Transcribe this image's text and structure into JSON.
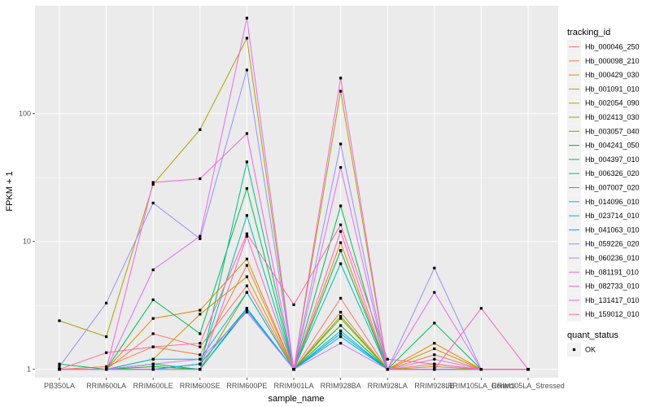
{
  "chart_data": {
    "type": "line",
    "xlabel": "sample_name",
    "ylabel": "FPKM + 1",
    "y_scale": "log10",
    "ylim": [
      0.86,
      700
    ],
    "y_ticks": [
      1,
      10,
      100
    ],
    "y_tick_labels": [
      "1",
      "10",
      "100"
    ],
    "categories": [
      "PB350LA",
      "RRIM600LA",
      "RRIM600LE",
      "RRIM600SE",
      "RRIM600PE",
      "RRIM901LA",
      "RRIM928BA",
      "RRIM928LA",
      "RRIM928LE",
      "RRIM105LA_Control",
      "RRIM105LA_Stressed"
    ],
    "grid": true,
    "background": "#ebebeb",
    "legend_position": "right",
    "legend_title": "tracking_id",
    "shape_legend": {
      "title": "quant_status",
      "labels": [
        "OK"
      ]
    },
    "series": [
      {
        "name": "Hb_000046_250",
        "color": "#F8766D",
        "values": [
          1.0,
          1.0,
          1.9,
          1.5,
          4.5,
          1.0,
          3.6,
          1.0,
          1.1,
          1.0,
          1.0
        ]
      },
      {
        "name": "Hb_000098_210",
        "color": "#EE8043",
        "values": [
          1.0,
          1.05,
          1.5,
          1.3,
          6.5,
          1.0,
          2.8,
          1.0,
          1.3,
          1.0,
          1.0
        ]
      },
      {
        "name": "Hb_000429_030",
        "color": "#E38900",
        "values": [
          1.0,
          1.0,
          2.5,
          2.9,
          7.3,
          1.0,
          9.8,
          1.0,
          1.6,
          1.0,
          1.0
        ]
      },
      {
        "name": "Hb_001091_010",
        "color": "#D39200",
        "values": [
          1.0,
          1.0,
          1.2,
          2.7,
          5.3,
          1.0,
          8.5,
          1.0,
          1.45,
          1.0,
          1.0
        ]
      },
      {
        "name": "Hb_002054_090",
        "color": "#AEA200",
        "values": [
          2.4,
          1.8,
          28.0,
          75.0,
          390.0,
          1.0,
          150.0,
          1.0,
          1.05,
          1.0,
          1.0
        ]
      },
      {
        "name": "Hb_002413_030",
        "color": "#8EAB00",
        "values": [
          1.0,
          1.0,
          1.1,
          1.0,
          4.0,
          1.0,
          2.5,
          1.0,
          1.0,
          1.0,
          1.0
        ]
      },
      {
        "name": "Hb_003057_040",
        "color": "#64B200",
        "values": [
          1.0,
          1.0,
          1.0,
          1.1,
          3.0,
          1.0,
          2.6,
          1.0,
          1.0,
          1.0,
          1.0
        ]
      },
      {
        "name": "Hb_004241_050",
        "color": "#00B81F",
        "values": [
          1.0,
          1.0,
          1.05,
          1.0,
          3.0,
          1.0,
          2.2,
          1.0,
          1.0,
          1.0,
          1.0
        ]
      },
      {
        "name": "Hb_004397_010",
        "color": "#00BC56",
        "values": [
          1.1,
          1.0,
          3.5,
          1.9,
          26.0,
          1.0,
          19.0,
          1.0,
          2.3,
          1.0,
          1.0
        ]
      },
      {
        "name": "Hb_006326_020",
        "color": "#00BE87",
        "values": [
          1.0,
          1.0,
          1.1,
          1.0,
          42.0,
          1.0,
          8.5,
          1.0,
          1.0,
          1.0,
          1.0
        ]
      },
      {
        "name": "Hb_007007_020",
        "color": "#00BFAF",
        "values": [
          1.0,
          1.0,
          1.0,
          1.1,
          16.0,
          1.0,
          6.7,
          1.0,
          1.0,
          1.0,
          1.0
        ]
      },
      {
        "name": "Hb_014096_010",
        "color": "#00BDD2",
        "values": [
          1.0,
          1.0,
          1.2,
          1.2,
          4.0,
          1.0,
          2.0,
          1.0,
          1.0,
          1.0,
          1.0
        ]
      },
      {
        "name": "Hb_023714_010",
        "color": "#00B4EF",
        "values": [
          1.0,
          1.0,
          1.0,
          1.1,
          3.0,
          1.0,
          1.8,
          1.0,
          1.0,
          1.0,
          1.0
        ]
      },
      {
        "name": "Hb_041063_010",
        "color": "#00A5FF",
        "values": [
          1.0,
          1.0,
          1.0,
          1.0,
          2.9,
          1.0,
          1.9,
          1.0,
          1.0,
          1.0,
          1.0
        ]
      },
      {
        "name": "Hb_059226_020",
        "color": "#9590FF",
        "values": [
          1.05,
          3.3,
          20.0,
          10.5,
          220.0,
          1.0,
          58.0,
          1.0,
          6.2,
          1.0,
          1.0
        ]
      },
      {
        "name": "Hb_060236_010",
        "color": "#C77CFF",
        "values": [
          1.0,
          1.0,
          1.1,
          1.2,
          2.8,
          1.0,
          1.6,
          1.0,
          1.2,
          1.0,
          1.0
        ]
      },
      {
        "name": "Hb_081191_010",
        "color": "#E76BF3",
        "values": [
          1.0,
          1.0,
          6.0,
          11.0,
          560.0,
          1.0,
          38.0,
          1.0,
          4.0,
          1.0,
          1.0
        ]
      },
      {
        "name": "Hb_082733_010",
        "color": "#FA62DB",
        "values": [
          1.0,
          1.0,
          29.0,
          31.0,
          70.0,
          1.0,
          190.0,
          1.0,
          1.0,
          1.0,
          1.0
        ]
      },
      {
        "name": "Hb_131417_010",
        "color": "#FF61C3",
        "values": [
          1.0,
          1.0,
          1.0,
          1.0,
          11.0,
          1.0,
          12.0,
          1.0,
          1.0,
          3.0,
          1.0
        ]
      },
      {
        "name": "Hb_159012_010",
        "color": "#FF67A4",
        "values": [
          1.0,
          1.35,
          1.5,
          1.6,
          11.5,
          3.2,
          13.5,
          1.2,
          1.1,
          1.0,
          1.0
        ]
      }
    ]
  }
}
